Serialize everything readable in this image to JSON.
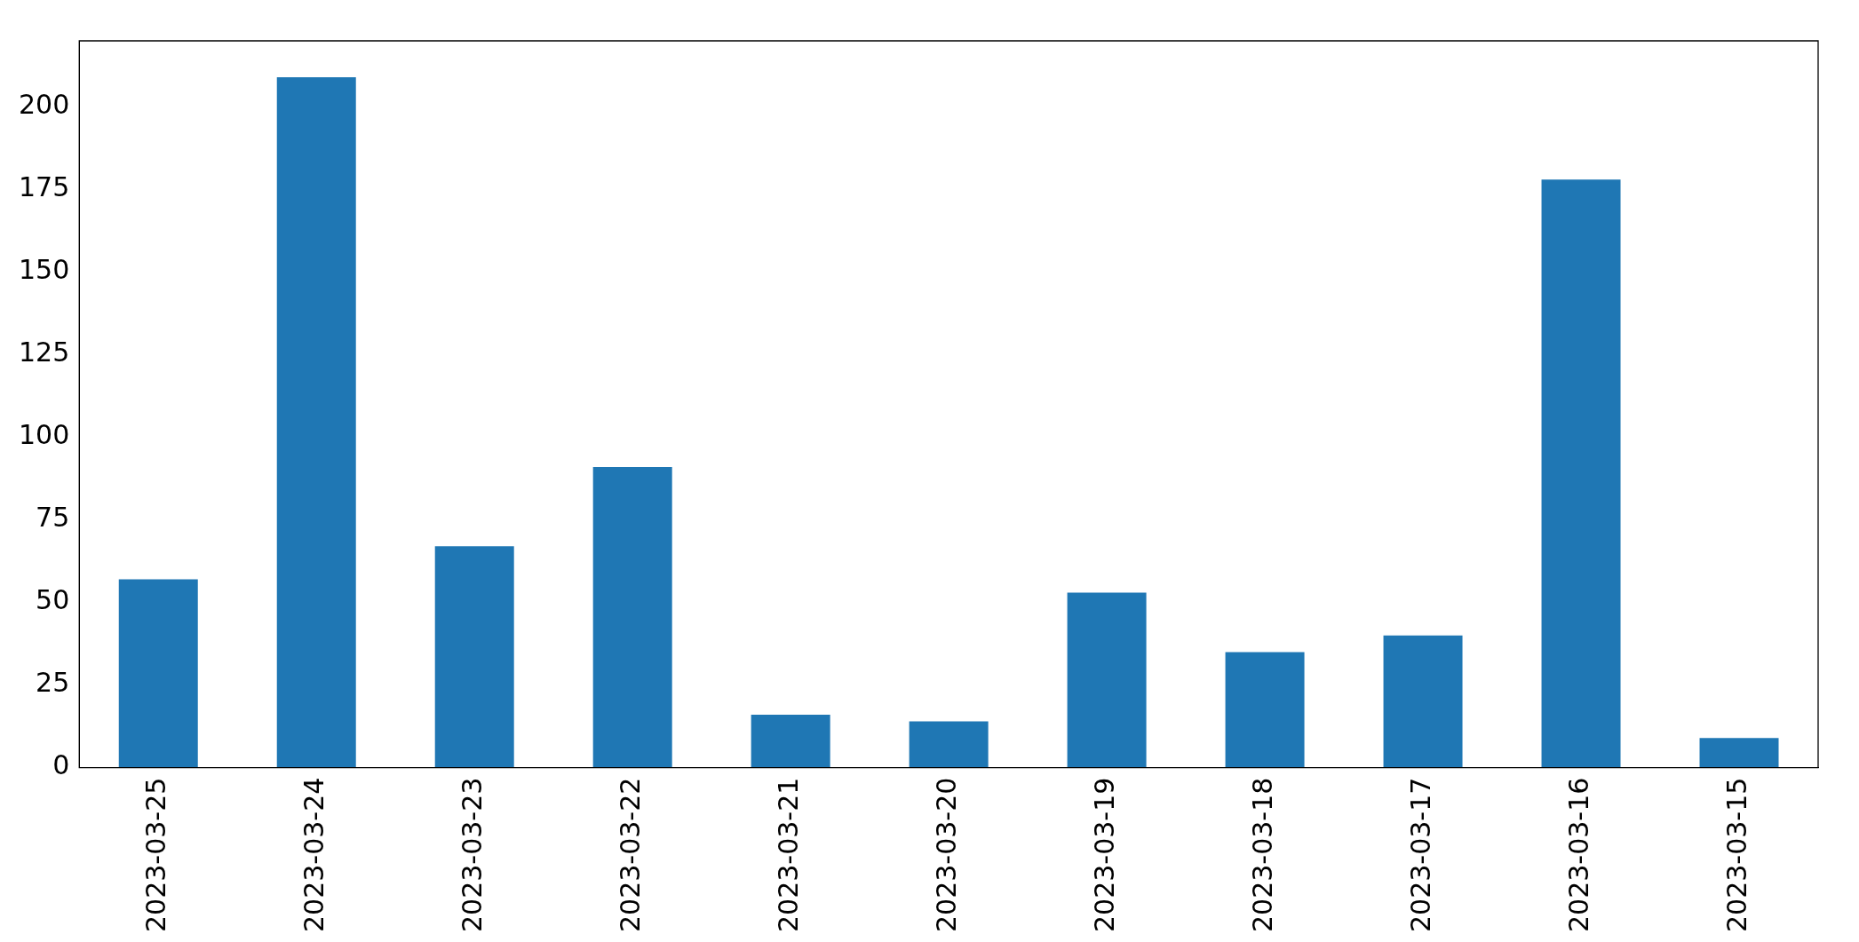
{
  "chart_data": {
    "type": "bar",
    "categories": [
      "2023-03-25",
      "2023-03-24",
      "2023-03-23",
      "2023-03-22",
      "2023-03-21",
      "2023-03-20",
      "2023-03-19",
      "2023-03-18",
      "2023-03-17",
      "2023-03-16",
      "2023-03-15"
    ],
    "values": [
      57,
      209,
      67,
      91,
      16,
      14,
      53,
      35,
      40,
      178,
      9
    ],
    "color": "#1f77b4",
    "ylim": [
      0,
      220
    ],
    "yticks": [
      0,
      25,
      50,
      75,
      100,
      125,
      150,
      175,
      200
    ],
    "grid": false,
    "legend": false
  }
}
